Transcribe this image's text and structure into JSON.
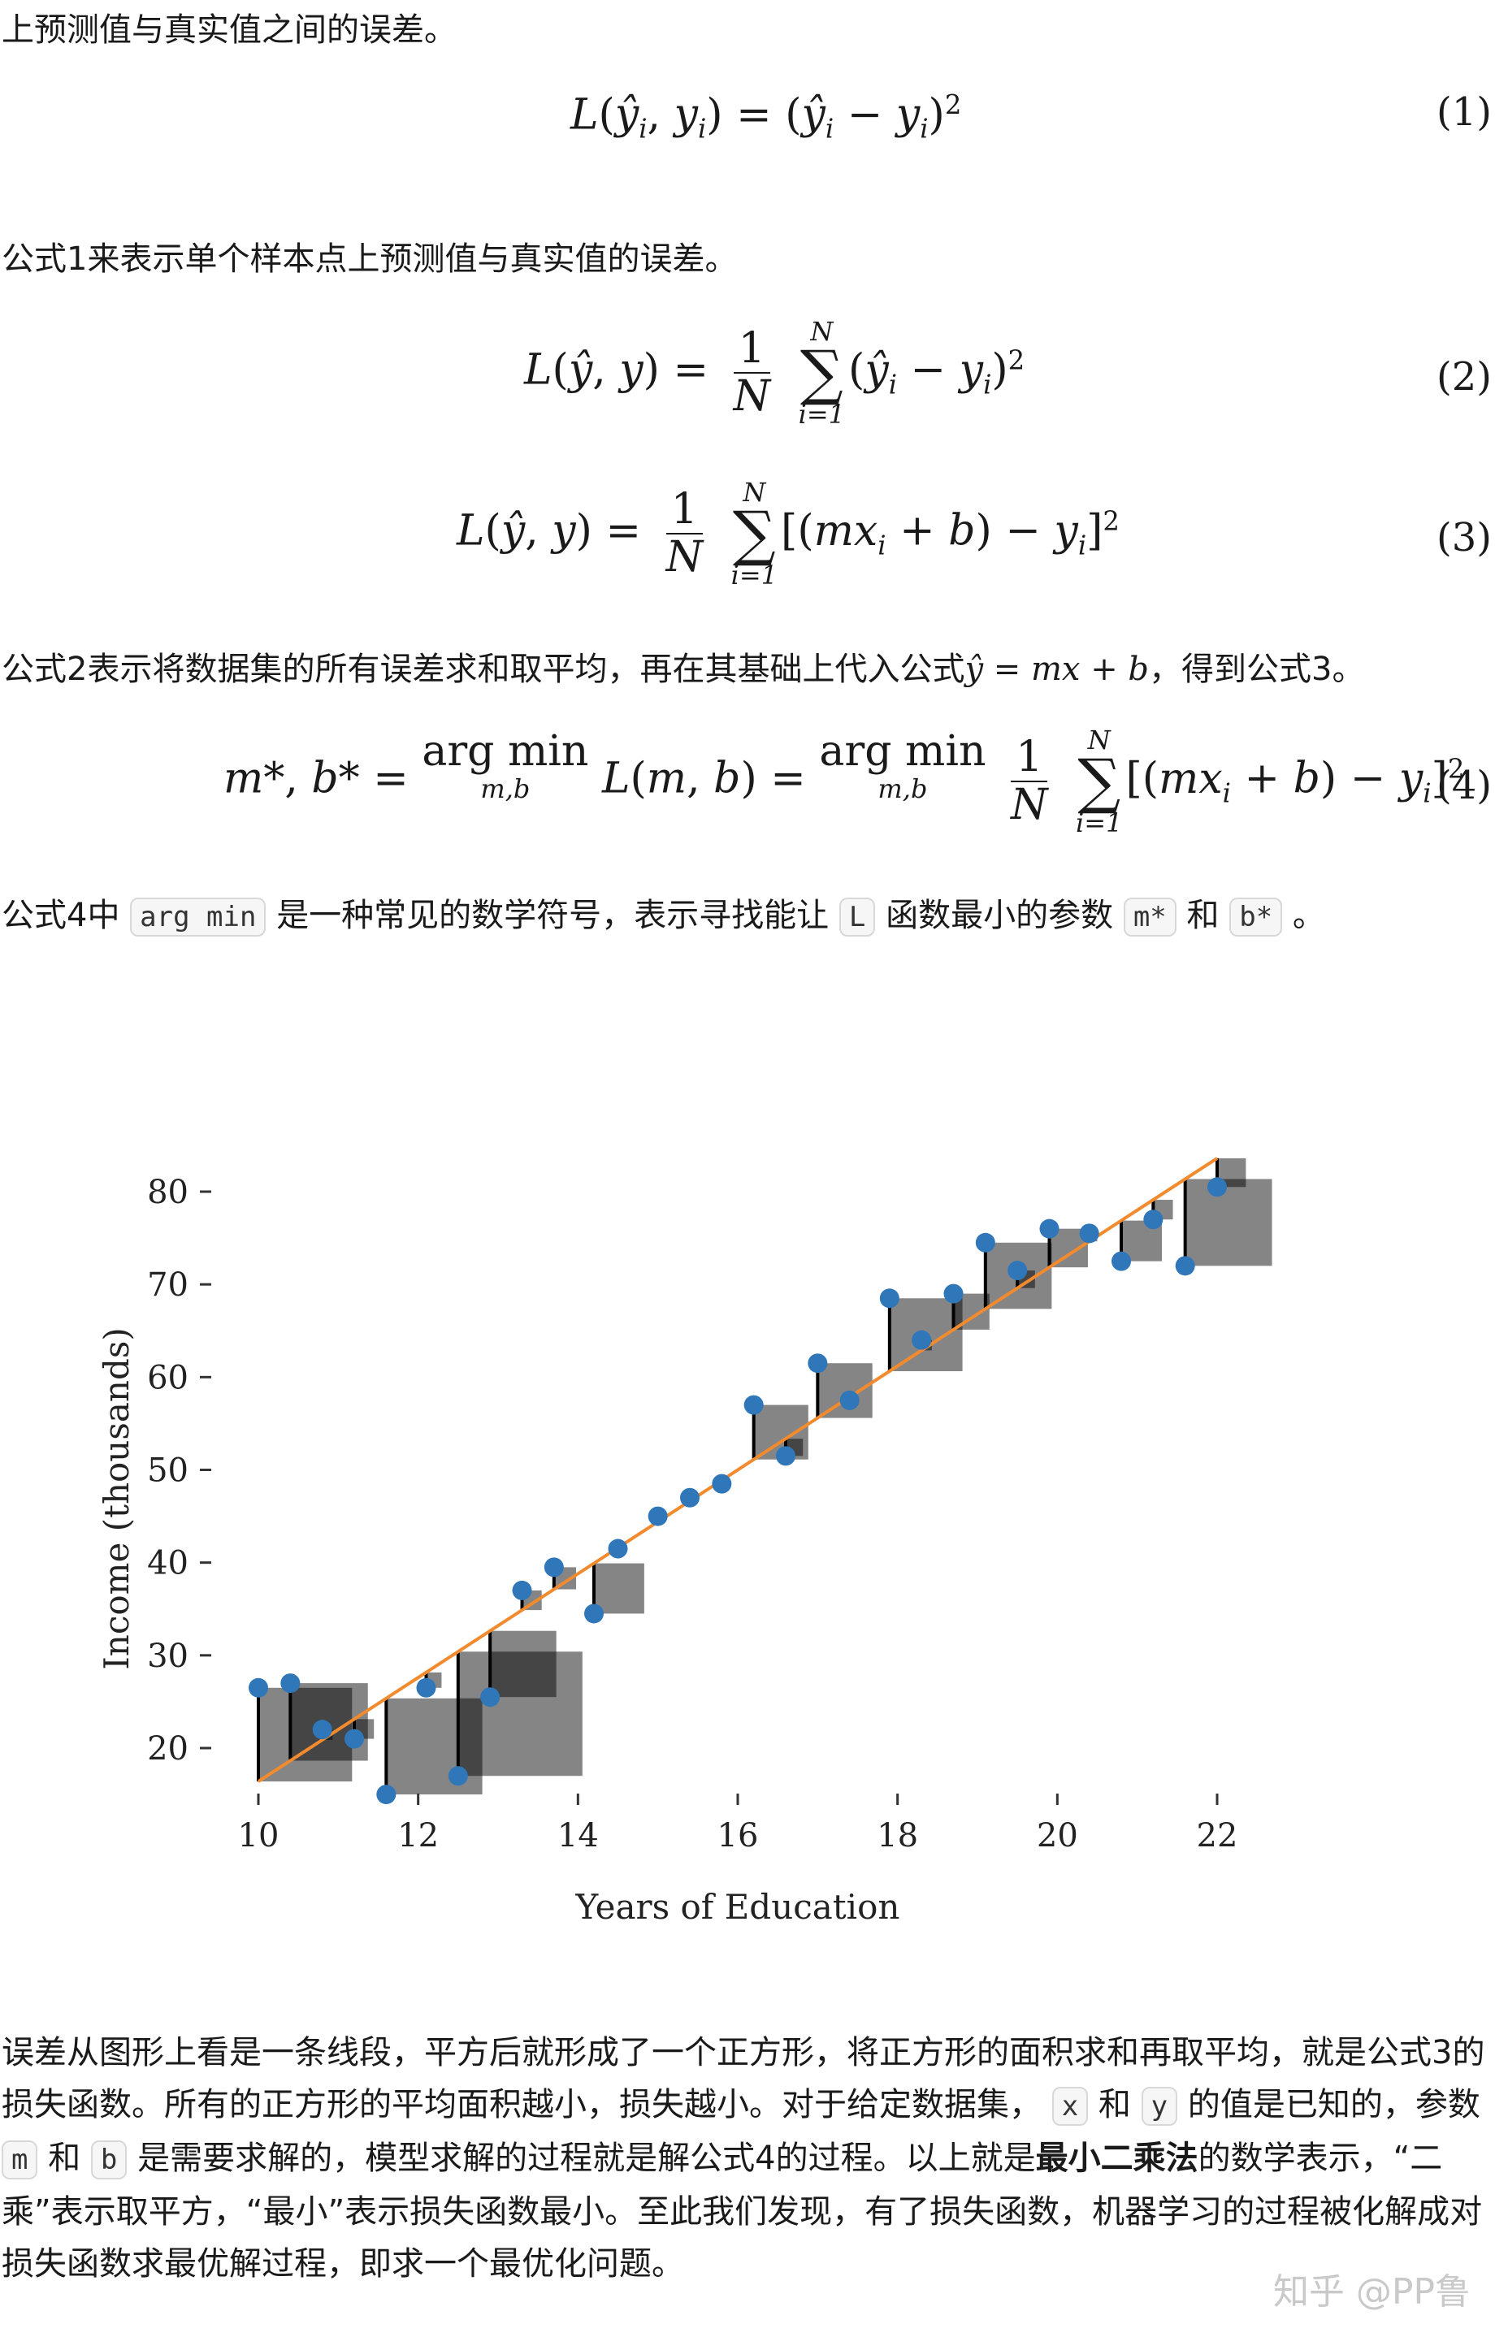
{
  "paragraphs": {
    "p1": "上预测值与真实值之间的误差。",
    "p2": "公式1来表示单个样本点上预测值与真实值的误差。",
    "p3_pre": "公式2表示将数据集的所有误差求和取平均，再在其基础上代入公式",
    "p3_post": "，得到公式3。",
    "p4_pre": "公式4中",
    "p4_code1": "arg min",
    "p4_mid1": "是一种常见的数学符号，表示寻找能让",
    "p4_code2": "L",
    "p4_mid2": "函数最小的参数",
    "p4_code3": "m*",
    "p4_and": "和",
    "p4_code4": "b*",
    "p4_end": "。",
    "p5_a": "误差从图形上看是一条线段，平方后就形成了一个正方形，将正方形的面积求和再取平均，就是公式3的损失函数。所有的正方形的平均面积越小，损失越小。对于给定数据集，",
    "p5_code_x": "x",
    "p5_and1": "和",
    "p5_code_y": "y",
    "p5_b": "的值是已知的，参数",
    "p5_code_m": "m",
    "p5_and2": "和",
    "p5_code_b": "b",
    "p5_c": "是需要求解的，模型求解的过程就是解公式4的过程。以上就是",
    "p5_bold": "最小二乘法",
    "p5_d": "的数学表示，“二乘”表示取平方，“最小”表示损失函数最小。至此我们发现，有了损失函数，机器学习的过程被化解成对损失函数求最优解过程，即求一个最优化问题。"
  },
  "equations": {
    "eq1_num": "(1)",
    "eq2_num": "(2)",
    "eq3_num": "(3)",
    "eq4_num": "(4)"
  },
  "watermark": "知乎 @PP鲁",
  "chart_data": {
    "type": "scatter",
    "xlabel": "Years of Education",
    "ylabel": "Income (thousands)",
    "xlim": [
      9.5,
      23
    ],
    "ylim": [
      13,
      85
    ],
    "xticks": [
      "10",
      "12",
      "14",
      "16",
      "18",
      "20",
      "22"
    ],
    "yticks": [
      "20",
      "30",
      "40",
      "50",
      "60",
      "70",
      "80"
    ],
    "grid": false,
    "line": {
      "slope": 5.6,
      "intercept": -39.6,
      "x_range": [
        10,
        22
      ],
      "color": "#f28a2e"
    },
    "point_color": "#2f77b8",
    "square_color": "#000000",
    "points": [
      {
        "x": 10.0,
        "y": 26.5
      },
      {
        "x": 10.4,
        "y": 27.0
      },
      {
        "x": 10.8,
        "y": 22.0
      },
      {
        "x": 11.2,
        "y": 21.0
      },
      {
        "x": 11.6,
        "y": 15.0
      },
      {
        "x": 12.1,
        "y": 26.5
      },
      {
        "x": 12.5,
        "y": 17.0
      },
      {
        "x": 12.9,
        "y": 25.5
      },
      {
        "x": 13.3,
        "y": 37.0
      },
      {
        "x": 13.7,
        "y": 39.5
      },
      {
        "x": 14.2,
        "y": 34.5
      },
      {
        "x": 14.5,
        "y": 41.5
      },
      {
        "x": 15.0,
        "y": 45.0
      },
      {
        "x": 15.4,
        "y": 47.0
      },
      {
        "x": 15.8,
        "y": 48.5
      },
      {
        "x": 16.2,
        "y": 57.0
      },
      {
        "x": 16.6,
        "y": 51.5
      },
      {
        "x": 17.0,
        "y": 61.5
      },
      {
        "x": 17.4,
        "y": 57.5
      },
      {
        "x": 17.9,
        "y": 68.5
      },
      {
        "x": 18.3,
        "y": 64.0
      },
      {
        "x": 18.7,
        "y": 69.0
      },
      {
        "x": 19.1,
        "y": 74.5
      },
      {
        "x": 19.5,
        "y": 71.5
      },
      {
        "x": 19.9,
        "y": 76.0
      },
      {
        "x": 20.4,
        "y": 75.5
      },
      {
        "x": 20.8,
        "y": 72.5
      },
      {
        "x": 21.2,
        "y": 77.0
      },
      {
        "x": 21.6,
        "y": 72.0
      },
      {
        "x": 22.0,
        "y": 80.5
      }
    ]
  }
}
